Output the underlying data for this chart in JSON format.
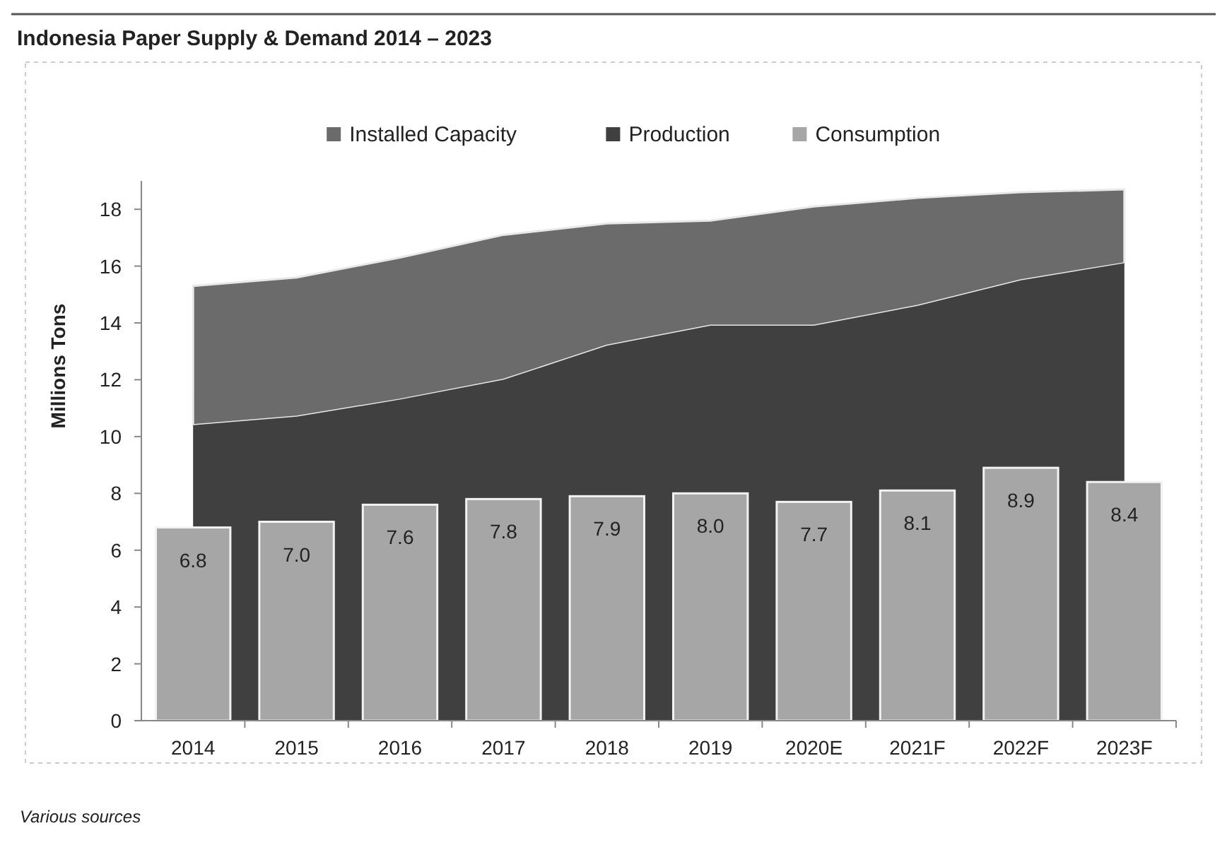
{
  "chart_data": {
    "type": "bar",
    "title": "Indonesia Paper Supply & Demand 2014 – 2023",
    "ylabel": "Millions Tons",
    "categories": [
      "2014",
      "2015",
      "2016",
      "2017",
      "2018",
      "2019",
      "2020E",
      "2021F",
      "2022F",
      "2023F"
    ],
    "series": [
      {
        "name": "Installed Capacity",
        "type": "area",
        "color": "#6b6b6b",
        "values": [
          15.3,
          15.6,
          16.3,
          17.1,
          17.5,
          17.6,
          18.1,
          18.4,
          18.6,
          18.7
        ]
      },
      {
        "name": "Production",
        "type": "area",
        "color": "#404040",
        "values": [
          10.4,
          10.7,
          11.3,
          12.0,
          13.2,
          13.9,
          13.9,
          14.6,
          15.5,
          16.1
        ]
      },
      {
        "name": "Consumption",
        "color": "#a6a6a6",
        "values": [
          6.8,
          7.0,
          7.6,
          7.8,
          7.9,
          8.0,
          7.7,
          8.1,
          8.9,
          8.4
        ],
        "value_labels": [
          "6.8",
          "7.0",
          "7.6",
          "7.8",
          "7.9",
          "8.0",
          "7.7",
          "8.1",
          "8.9",
          "8.4"
        ]
      }
    ],
    "ylim": [
      0,
      19
    ],
    "yticks": [
      0,
      2,
      4,
      6,
      8,
      10,
      12,
      14,
      16,
      18
    ],
    "legend": "top",
    "grid": false,
    "annotations": [
      "Various sources"
    ]
  }
}
